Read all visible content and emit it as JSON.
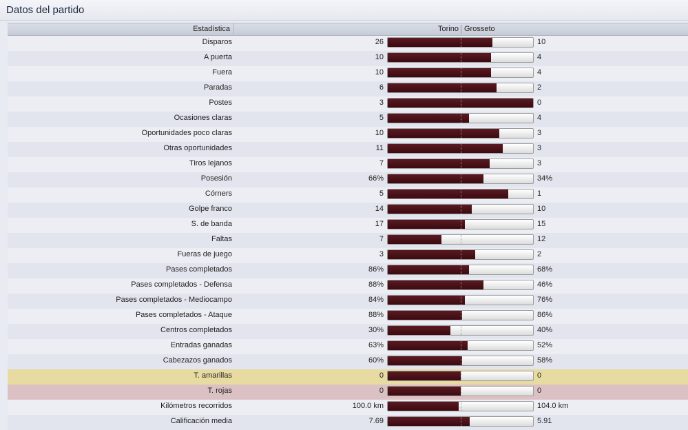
{
  "header": {
    "title": "Datos del partido"
  },
  "columns": {
    "stat": "Estadística",
    "home_team": "Torino",
    "away_team": "Grosseto"
  },
  "colors": {
    "bar_fill": "#4a1219",
    "yellow_row": "#e8dba1",
    "red_row": "#dcc1c4"
  },
  "stats": [
    {
      "label": "Disparos",
      "home": "26",
      "away": "10",
      "home_share": 0.72
    },
    {
      "label": "A puerta",
      "home": "10",
      "away": "4",
      "home_share": 0.71
    },
    {
      "label": "Fuera",
      "home": "10",
      "away": "4",
      "home_share": 0.71
    },
    {
      "label": "Paradas",
      "home": "6",
      "away": "2",
      "home_share": 0.75
    },
    {
      "label": "Postes",
      "home": "3",
      "away": "0",
      "home_share": 1.0
    },
    {
      "label": "Ocasiones claras",
      "home": "5",
      "away": "4",
      "home_share": 0.56
    },
    {
      "label": "Oportunidades poco claras",
      "home": "10",
      "away": "3",
      "home_share": 0.77
    },
    {
      "label": "Otras oportunidades",
      "home": "11",
      "away": "3",
      "home_share": 0.79
    },
    {
      "label": "Tiros lejanos",
      "home": "7",
      "away": "3",
      "home_share": 0.7
    },
    {
      "label": "Posesión",
      "home": "66%",
      "away": "34%",
      "home_share": 0.66
    },
    {
      "label": "Córners",
      "home": "5",
      "away": "1",
      "home_share": 0.83
    },
    {
      "label": "Golpe franco",
      "home": "14",
      "away": "10",
      "home_share": 0.58
    },
    {
      "label": "S. de banda",
      "home": "17",
      "away": "15",
      "home_share": 0.53
    },
    {
      "label": "Faltas",
      "home": "7",
      "away": "12",
      "home_share": 0.37
    },
    {
      "label": "Fueras de juego",
      "home": "3",
      "away": "2",
      "home_share": 0.6
    },
    {
      "label": "Pases completados",
      "home": "86%",
      "away": "68%",
      "home_share": 0.56
    },
    {
      "label": "Pases completados - Defensa",
      "home": "88%",
      "away": "46%",
      "home_share": 0.66
    },
    {
      "label": "Pases completados - Mediocampo",
      "home": "84%",
      "away": "76%",
      "home_share": 0.53
    },
    {
      "label": "Pases completados - Ataque",
      "home": "88%",
      "away": "86%",
      "home_share": 0.51
    },
    {
      "label": "Centros completados",
      "home": "30%",
      "away": "40%",
      "home_share": 0.43
    },
    {
      "label": "Entradas ganadas",
      "home": "63%",
      "away": "52%",
      "home_share": 0.55
    },
    {
      "label": "Cabezazos ganados",
      "home": "60%",
      "away": "58%",
      "home_share": 0.51
    },
    {
      "label": "T. amarillas",
      "home": "0",
      "away": "0",
      "home_share": 0.5,
      "highlight": "yellow"
    },
    {
      "label": "T. rojas",
      "home": "0",
      "away": "0",
      "home_share": 0.5,
      "highlight": "red"
    },
    {
      "label": "Kilómetros recorridos",
      "home": "100.0 km",
      "away": "104.0 km",
      "home_share": 0.49
    },
    {
      "label": "Calificación media",
      "home": "7.69",
      "away": "5.91",
      "home_share": 0.565
    }
  ]
}
